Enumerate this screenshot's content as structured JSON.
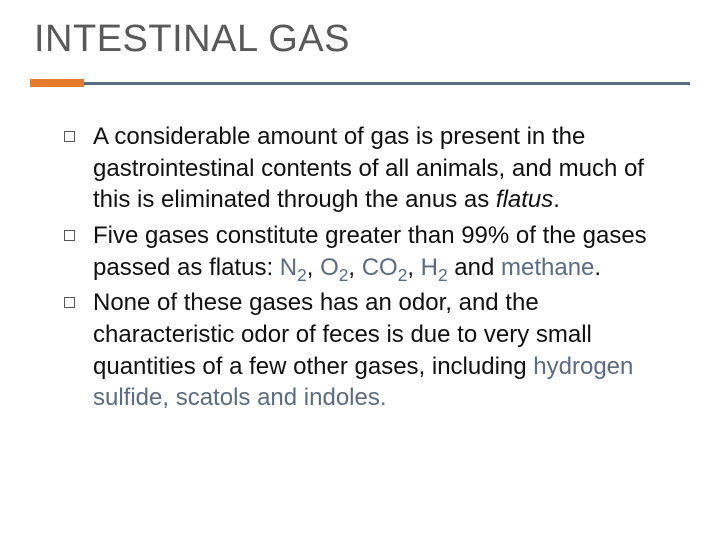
{
  "title": "INTESTINAL GAS",
  "accent_color": "#e47b2d",
  "line_color": "#5b6c84",
  "title_color": "#595959",
  "text_color": "#111111",
  "highlight_color": "#5b6c84",
  "title_fontsize": 38,
  "body_fontsize": 24,
  "bullets": [
    {
      "pre": "A considerable amount of gas is present in the gastrointestinal contents of all animals, and much of this is eliminated through the anus as ",
      "flatus": "flatus",
      "post": "."
    },
    {
      "pre": "Five gases constitute greater than 99% of the gases passed as flatus: ",
      "g1a": "N",
      "g1s": "2",
      "sep1": ", ",
      "g2a": "O",
      "g2s": "2",
      "sep2": ", ",
      "g3a": "CO",
      "g3s": "2",
      "sep3": ", ",
      "g4a": "H",
      "g4s": "2",
      "sep4": " and ",
      "g5": "methane",
      "post": "."
    },
    {
      "pre": " None of these gases has an odor, and the characteristic odor of feces is due to very small quantities of a few other gases, including ",
      "hl": "hydrogen sulfide, scatols and indoles.",
      "post": ""
    }
  ]
}
